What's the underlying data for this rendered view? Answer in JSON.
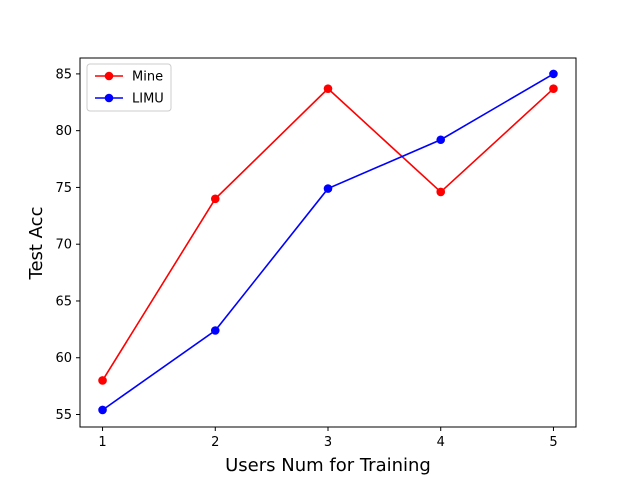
{
  "chart_data": {
    "type": "line",
    "title": "",
    "xlabel": "Users Num for Training",
    "ylabel": "Test Acc",
    "x": [
      1,
      2,
      3,
      4,
      5
    ],
    "x_ticks": [
      "1",
      "2",
      "3",
      "4",
      "5"
    ],
    "y_ticks": [
      "55",
      "60",
      "65",
      "70",
      "75",
      "80",
      "85"
    ],
    "xlim": [
      0.8,
      5.2
    ],
    "ylim": [
      53.9,
      86.4
    ],
    "grid": false,
    "legend_position": "top-left",
    "series": [
      {
        "name": "Mine",
        "color": "#ff0000",
        "marker": "circle",
        "values": [
          58.0,
          74.0,
          83.7,
          74.6,
          83.7
        ]
      },
      {
        "name": "LIMU",
        "color": "#0000ff",
        "marker": "circle",
        "values": [
          55.4,
          62.4,
          74.9,
          79.2,
          85.0
        ]
      }
    ]
  }
}
